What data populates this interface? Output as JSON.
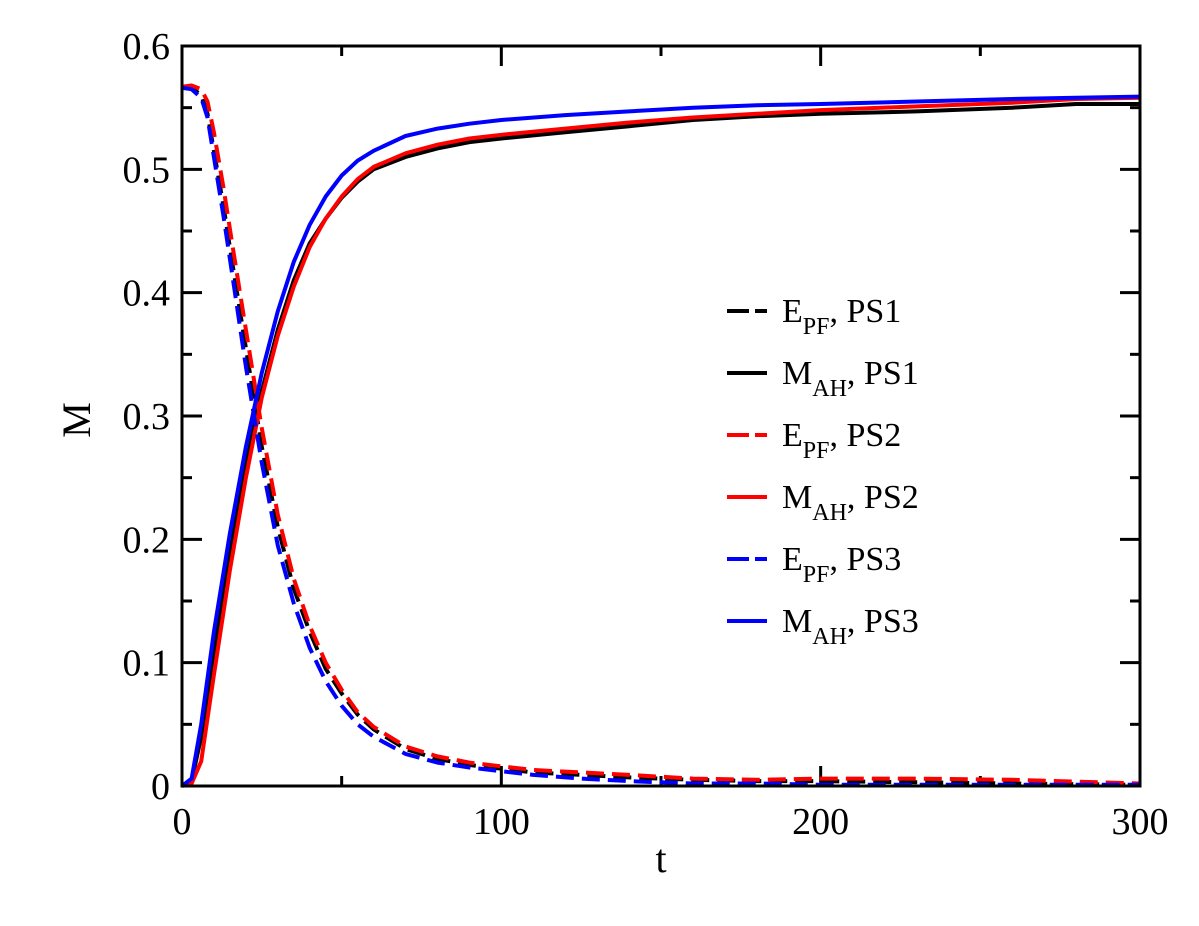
{
  "chart_data": {
    "type": "line",
    "title": "",
    "xlabel": "t",
    "ylabel": "M",
    "xlim": [
      0,
      300
    ],
    "ylim": [
      0,
      0.6
    ],
    "x_ticks": [
      0,
      100,
      200,
      300
    ],
    "x_tick_labels": [
      "0",
      "100",
      "200",
      "300"
    ],
    "y_ticks": [
      0,
      0.1,
      0.2,
      0.3,
      0.4,
      0.5,
      0.6
    ],
    "y_tick_labels": [
      "0",
      "0.1",
      "0.2",
      "0.3",
      "0.4",
      "0.5",
      "0.6"
    ],
    "grid": false,
    "legend_position": "right-middle",
    "series": [
      {
        "name": "E_PF, PS1",
        "label_main": "E",
        "label_sub": "PF",
        "label_suffix": ", PS1",
        "color": "#000000",
        "style": "dashed",
        "points": [
          [
            0,
            0.567
          ],
          [
            3,
            0.566
          ],
          [
            6,
            0.56
          ],
          [
            8,
            0.545
          ],
          [
            10,
            0.515
          ],
          [
            13,
            0.47
          ],
          [
            16,
            0.42
          ],
          [
            20,
            0.355
          ],
          [
            25,
            0.275
          ],
          [
            30,
            0.21
          ],
          [
            35,
            0.16
          ],
          [
            40,
            0.125
          ],
          [
            45,
            0.095
          ],
          [
            50,
            0.075
          ],
          [
            55,
            0.058
          ],
          [
            60,
            0.046
          ],
          [
            70,
            0.03
          ],
          [
            80,
            0.022
          ],
          [
            90,
            0.017
          ],
          [
            100,
            0.014
          ],
          [
            110,
            0.011
          ],
          [
            125,
            0.009
          ],
          [
            140,
            0.007
          ],
          [
            160,
            0.005
          ],
          [
            180,
            0.004
          ],
          [
            200,
            0.004
          ],
          [
            230,
            0.003
          ],
          [
            260,
            0.002
          ],
          [
            300,
            0.001
          ]
        ]
      },
      {
        "name": "M_AH, PS1",
        "label_main": "M",
        "label_sub": "AH",
        "label_suffix": ", PS1",
        "color": "#000000",
        "style": "solid",
        "points": [
          [
            0,
            0.0
          ],
          [
            3,
            0.004
          ],
          [
            6,
            0.04
          ],
          [
            10,
            0.11
          ],
          [
            15,
            0.19
          ],
          [
            20,
            0.26
          ],
          [
            25,
            0.32
          ],
          [
            30,
            0.37
          ],
          [
            35,
            0.41
          ],
          [
            40,
            0.44
          ],
          [
            45,
            0.46
          ],
          [
            50,
            0.477
          ],
          [
            55,
            0.49
          ],
          [
            60,
            0.5
          ],
          [
            70,
            0.51
          ],
          [
            80,
            0.517
          ],
          [
            90,
            0.522
          ],
          [
            100,
            0.525
          ],
          [
            120,
            0.53
          ],
          [
            140,
            0.535
          ],
          [
            160,
            0.54
          ],
          [
            180,
            0.543
          ],
          [
            200,
            0.545
          ],
          [
            230,
            0.547
          ],
          [
            260,
            0.55
          ],
          [
            280,
            0.553
          ],
          [
            300,
            0.553
          ]
        ]
      },
      {
        "name": "E_PF, PS2",
        "label_main": "E",
        "label_sub": "PF",
        "label_suffix": ", PS2",
        "color": "#ff0000",
        "style": "dashed",
        "points": [
          [
            0,
            0.567
          ],
          [
            3,
            0.568
          ],
          [
            6,
            0.565
          ],
          [
            8,
            0.555
          ],
          [
            10,
            0.53
          ],
          [
            13,
            0.485
          ],
          [
            16,
            0.435
          ],
          [
            20,
            0.37
          ],
          [
            25,
            0.29
          ],
          [
            30,
            0.22
          ],
          [
            35,
            0.168
          ],
          [
            40,
            0.13
          ],
          [
            45,
            0.1
          ],
          [
            50,
            0.078
          ],
          [
            55,
            0.06
          ],
          [
            60,
            0.048
          ],
          [
            70,
            0.032
          ],
          [
            80,
            0.024
          ],
          [
            90,
            0.019
          ],
          [
            100,
            0.016
          ],
          [
            110,
            0.013
          ],
          [
            125,
            0.011
          ],
          [
            140,
            0.009
          ],
          [
            160,
            0.006
          ],
          [
            180,
            0.005
          ],
          [
            200,
            0.006
          ],
          [
            230,
            0.006
          ],
          [
            260,
            0.005
          ],
          [
            300,
            0.002
          ]
        ]
      },
      {
        "name": "M_AH, PS2",
        "label_main": "M",
        "label_sub": "AH",
        "label_suffix": ", PS2",
        "color": "#ff0000",
        "style": "solid",
        "points": [
          [
            0,
            0.0
          ],
          [
            3,
            0.002
          ],
          [
            6,
            0.02
          ],
          [
            10,
            0.09
          ],
          [
            15,
            0.175
          ],
          [
            20,
            0.25
          ],
          [
            25,
            0.315
          ],
          [
            30,
            0.365
          ],
          [
            35,
            0.405
          ],
          [
            40,
            0.437
          ],
          [
            45,
            0.46
          ],
          [
            50,
            0.478
          ],
          [
            55,
            0.492
          ],
          [
            60,
            0.502
          ],
          [
            70,
            0.513
          ],
          [
            80,
            0.52
          ],
          [
            90,
            0.525
          ],
          [
            100,
            0.528
          ],
          [
            120,
            0.533
          ],
          [
            140,
            0.538
          ],
          [
            160,
            0.542
          ],
          [
            180,
            0.545
          ],
          [
            200,
            0.548
          ],
          [
            230,
            0.551
          ],
          [
            260,
            0.554
          ],
          [
            280,
            0.557
          ],
          [
            300,
            0.558
          ]
        ]
      },
      {
        "name": "E_PF, PS3",
        "label_main": "E",
        "label_sub": "PF",
        "label_suffix": ", PS3",
        "color": "#0000ff",
        "style": "dashed",
        "points": [
          [
            0,
            0.566
          ],
          [
            3,
            0.565
          ],
          [
            6,
            0.558
          ],
          [
            8,
            0.542
          ],
          [
            10,
            0.51
          ],
          [
            13,
            0.462
          ],
          [
            16,
            0.41
          ],
          [
            20,
            0.34
          ],
          [
            25,
            0.262
          ],
          [
            30,
            0.195
          ],
          [
            35,
            0.148
          ],
          [
            40,
            0.112
          ],
          [
            45,
            0.085
          ],
          [
            50,
            0.065
          ],
          [
            55,
            0.05
          ],
          [
            60,
            0.04
          ],
          [
            70,
            0.026
          ],
          [
            80,
            0.019
          ],
          [
            90,
            0.015
          ],
          [
            100,
            0.012
          ],
          [
            110,
            0.009
          ],
          [
            125,
            0.006
          ],
          [
            140,
            0.004
          ],
          [
            160,
            0.002
          ],
          [
            180,
            0.002
          ],
          [
            200,
            0.001
          ],
          [
            230,
            0.001
          ],
          [
            260,
            0.001
          ],
          [
            300,
            0.001
          ]
        ]
      },
      {
        "name": "M_AH, PS3",
        "label_main": "M",
        "label_sub": "AH",
        "label_suffix": ", PS3",
        "color": "#0000ff",
        "style": "solid",
        "points": [
          [
            0,
            0.0
          ],
          [
            3,
            0.006
          ],
          [
            6,
            0.05
          ],
          [
            10,
            0.125
          ],
          [
            15,
            0.205
          ],
          [
            20,
            0.275
          ],
          [
            25,
            0.335
          ],
          [
            30,
            0.385
          ],
          [
            35,
            0.425
          ],
          [
            40,
            0.455
          ],
          [
            45,
            0.478
          ],
          [
            50,
            0.495
          ],
          [
            55,
            0.507
          ],
          [
            60,
            0.515
          ],
          [
            70,
            0.527
          ],
          [
            80,
            0.533
          ],
          [
            90,
            0.537
          ],
          [
            100,
            0.54
          ],
          [
            120,
            0.544
          ],
          [
            140,
            0.547
          ],
          [
            160,
            0.55
          ],
          [
            180,
            0.552
          ],
          [
            200,
            0.553
          ],
          [
            230,
            0.555
          ],
          [
            260,
            0.557
          ],
          [
            280,
            0.558
          ],
          [
            300,
            0.559
          ]
        ]
      }
    ]
  }
}
